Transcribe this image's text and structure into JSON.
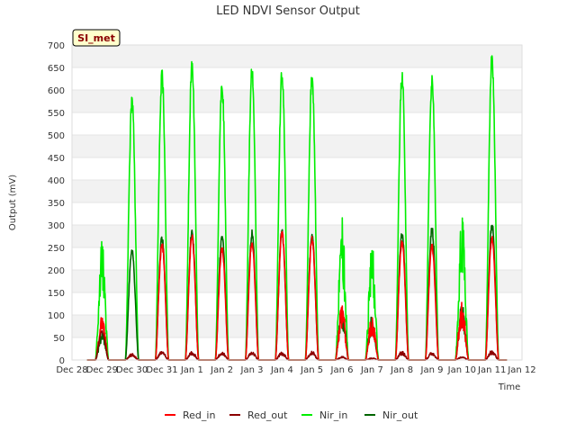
{
  "chart_data": {
    "type": "line",
    "title": "LED NDVI Sensor Output",
    "xlabel": "Time",
    "ylabel": "Output (mV)",
    "site_tag": "SI_met",
    "ylim": [
      0,
      700
    ],
    "yticks": [
      0,
      50,
      100,
      150,
      200,
      250,
      300,
      350,
      400,
      450,
      500,
      550,
      600,
      650,
      700
    ],
    "xlim": [
      0,
      15
    ],
    "x_unit": "days since Dec 28",
    "x_tick_labels": [
      "Dec 28",
      "Dec 29",
      "Dec 30",
      "Dec 31",
      "Jan 1",
      "Jan 2",
      "Jan 3",
      "Jan 4",
      "Jan 5",
      "Jan 6",
      "Jan 7",
      "Jan 8",
      "Jan 9",
      "Jan 10",
      "Jan 11",
      "Jan 12"
    ],
    "legend_position": "bottom",
    "days": [
      "Dec 29",
      "Dec 30",
      "Dec 31",
      "Jan 1",
      "Jan 2",
      "Jan 3",
      "Jan 4",
      "Jan 5",
      "Jan 6",
      "Jan 7",
      "Jan 8",
      "Jan 9",
      "Jan 10",
      "Jan 11"
    ],
    "series": [
      {
        "name": "Red_in",
        "color": "#ff0000",
        "daily_peaks": [
          100,
          15,
          265,
          280,
          255,
          270,
          290,
          275,
          125,
          100,
          270,
          260,
          130,
          280
        ],
        "x_start": 0.5,
        "x_end": 14.5
      },
      {
        "name": "Red_out",
        "color": "#8b0000",
        "daily_peaks": [
          65,
          15,
          20,
          20,
          20,
          20,
          18,
          20,
          8,
          5,
          20,
          18,
          8,
          22
        ],
        "x_start": 0.5,
        "x_end": 14.5
      },
      {
        "name": "Nir_in",
        "color": "#00ee00",
        "daily_peaks": [
          270,
          590,
          650,
          675,
          625,
          660,
          655,
          650,
          320,
          260,
          650,
          640,
          335,
          690
        ],
        "x_start": 0.5,
        "x_end": 14.5
      },
      {
        "name": "Nir_out",
        "color": "#006400",
        "daily_peaks": [
          65,
          250,
          280,
          295,
          285,
          290,
          295,
          285,
          120,
          100,
          290,
          300,
          130,
          310
        ],
        "x_start": 0.5,
        "x_end": 14.5
      }
    ]
  }
}
